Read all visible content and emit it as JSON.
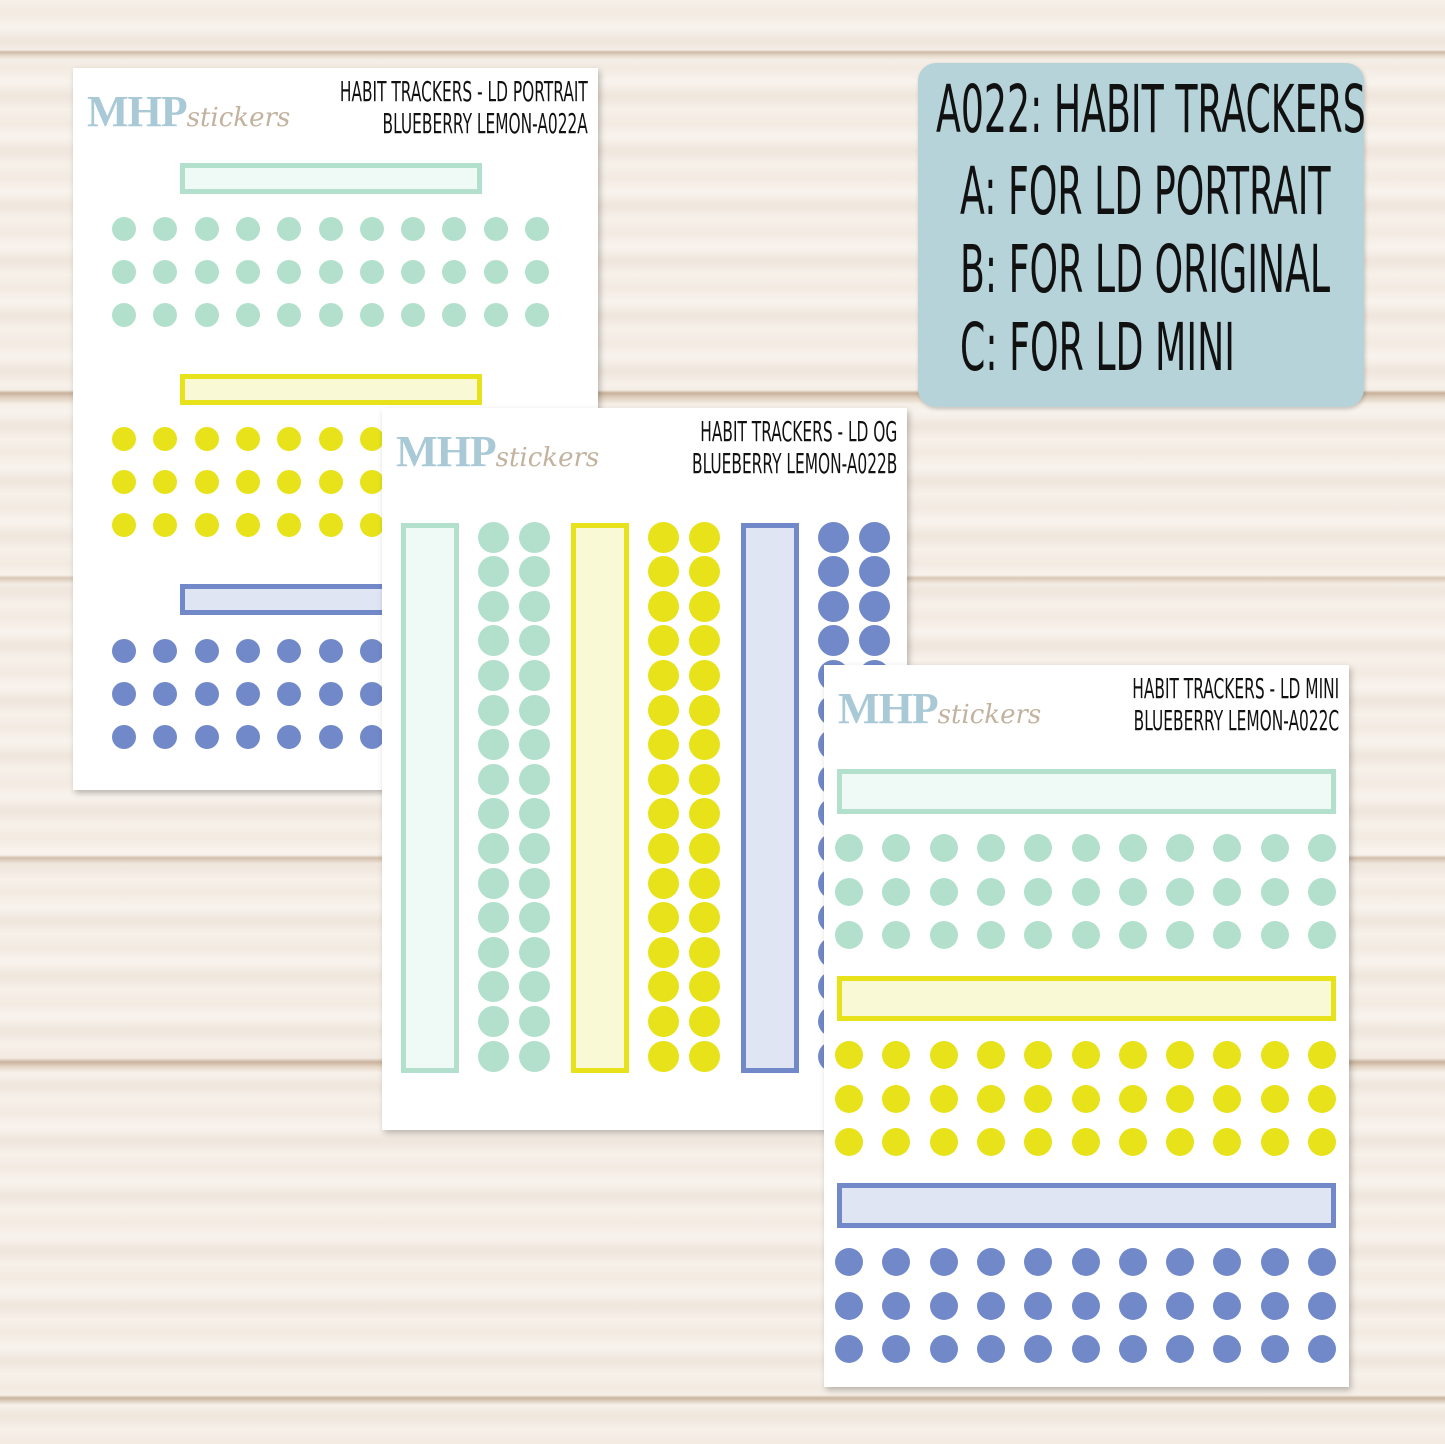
{
  "colors": {
    "mint": "#b2e0cd",
    "mint_fill": "#eff9f5",
    "yellow": "#e7e21a",
    "yellow_fill": "#f9f9d6",
    "blue": "#7189c9",
    "blue_fill": "#e0e5f4"
  },
  "brand": {
    "logo_bold": "MHP",
    "logo_script": "stickers"
  },
  "sheets": [
    {
      "title": "HABIT TRACKERS - LD PORTRAIT",
      "subtitle": "BLUEBERRY LEMON-A022A"
    },
    {
      "title": "HABIT TRACKERS - LD OG",
      "subtitle": "BLUEBERRY LEMON-A022B"
    },
    {
      "title": "HABIT TRACKERS - LD MINI",
      "subtitle": "BLUEBERRY LEMON-A022C"
    }
  ],
  "info": {
    "title": "A022: HABIT TRACKERS",
    "lines": [
      "A: FOR LD PORTRAIT",
      "B: FOR LD ORIGINAL",
      "C: FOR LD MINI"
    ]
  }
}
